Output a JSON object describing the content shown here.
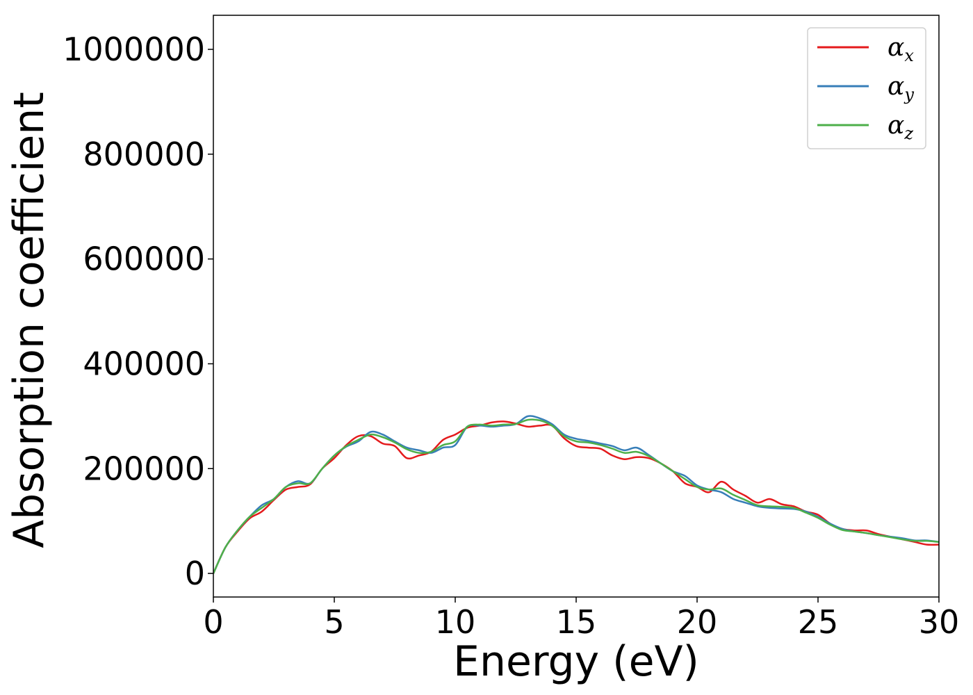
{
  "chart_data": {
    "type": "line",
    "xlabel": "Energy (eV)",
    "ylabel": "Absorption coefficient",
    "xlim": [
      0,
      30
    ],
    "ylim": [
      -45000,
      1065000
    ],
    "xticks": [
      0,
      5,
      10,
      15,
      20,
      25,
      30
    ],
    "xtick_labels": [
      "0",
      "5",
      "10",
      "15",
      "20",
      "25",
      "30"
    ],
    "yticks": [
      0,
      200000,
      400000,
      600000,
      800000,
      1000000
    ],
    "ytick_labels": [
      "0",
      "200000",
      "400000",
      "600000",
      "800000",
      "1000000"
    ],
    "grid": false,
    "legend_position": "top-right",
    "x": [
      0,
      0.5,
      1,
      1.5,
      2,
      2.5,
      3,
      3.5,
      4,
      4.5,
      5,
      5.5,
      6,
      6.5,
      7,
      7.5,
      8,
      8.5,
      9,
      9.5,
      10,
      10.5,
      11,
      11.5,
      12,
      12.5,
      13,
      13.5,
      14,
      14.5,
      15,
      15.5,
      16,
      16.5,
      17,
      17.5,
      18,
      18.5,
      19,
      19.5,
      20,
      20.5,
      21,
      21.5,
      22,
      22.5,
      23,
      23.5,
      24,
      24.5,
      25,
      25.5,
      26,
      26.5,
      27,
      27.5,
      28,
      28.5,
      29,
      29.5,
      30
    ],
    "series": [
      {
        "name_base": "α",
        "name_sub": "x",
        "color": "#e41a1c",
        "values": [
          0,
          50000,
          80000,
          105000,
          118000,
          140000,
          160000,
          165000,
          170000,
          200000,
          220000,
          245000,
          262000,
          262000,
          248000,
          243000,
          220000,
          225000,
          232000,
          255000,
          265000,
          278000,
          282000,
          288000,
          290000,
          286000,
          280000,
          282000,
          282000,
          258000,
          243000,
          240000,
          238000,
          225000,
          218000,
          222000,
          220000,
          210000,
          195000,
          172000,
          165000,
          155000,
          175000,
          160000,
          148000,
          135000,
          142000,
          132000,
          128000,
          118000,
          112000,
          95000,
          85000,
          82000,
          82000,
          75000,
          70000,
          65000,
          60000,
          55000,
          55000
        ]
      },
      {
        "name_base": "α",
        "name_sub": "y",
        "color": "#377eb8",
        "values": [
          0,
          50000,
          82000,
          108000,
          130000,
          142000,
          165000,
          176000,
          172000,
          200000,
          225000,
          242000,
          252000,
          270000,
          265000,
          252000,
          240000,
          235000,
          230000,
          240000,
          245000,
          280000,
          282000,
          280000,
          282000,
          285000,
          300000,
          296000,
          285000,
          265000,
          257000,
          253000,
          248000,
          243000,
          235000,
          240000,
          226000,
          210000,
          195000,
          186000,
          168000,
          160000,
          155000,
          142000,
          135000,
          128000,
          125000,
          124000,
          123000,
          118000,
          108000,
          95000,
          85000,
          80000,
          77000,
          73000,
          70000,
          67000,
          63000,
          63000,
          60000
        ]
      },
      {
        "name_base": "α",
        "name_sub": "z",
        "color": "#4daf4a",
        "values": [
          0,
          50000,
          82000,
          108000,
          125000,
          142000,
          165000,
          172000,
          172000,
          200000,
          225000,
          243000,
          255000,
          265000,
          260000,
          250000,
          237000,
          230000,
          232000,
          245000,
          252000,
          280000,
          284000,
          282000,
          284000,
          285000,
          293000,
          292000,
          282000,
          262000,
          252000,
          250000,
          245000,
          238000,
          230000,
          232000,
          224000,
          210000,
          195000,
          180000,
          165000,
          160000,
          162000,
          150000,
          140000,
          130000,
          128000,
          127000,
          125000,
          116000,
          106000,
          93000,
          83000,
          80000,
          77000,
          73000,
          69000,
          65000,
          62000,
          62000,
          60000
        ]
      }
    ]
  }
}
